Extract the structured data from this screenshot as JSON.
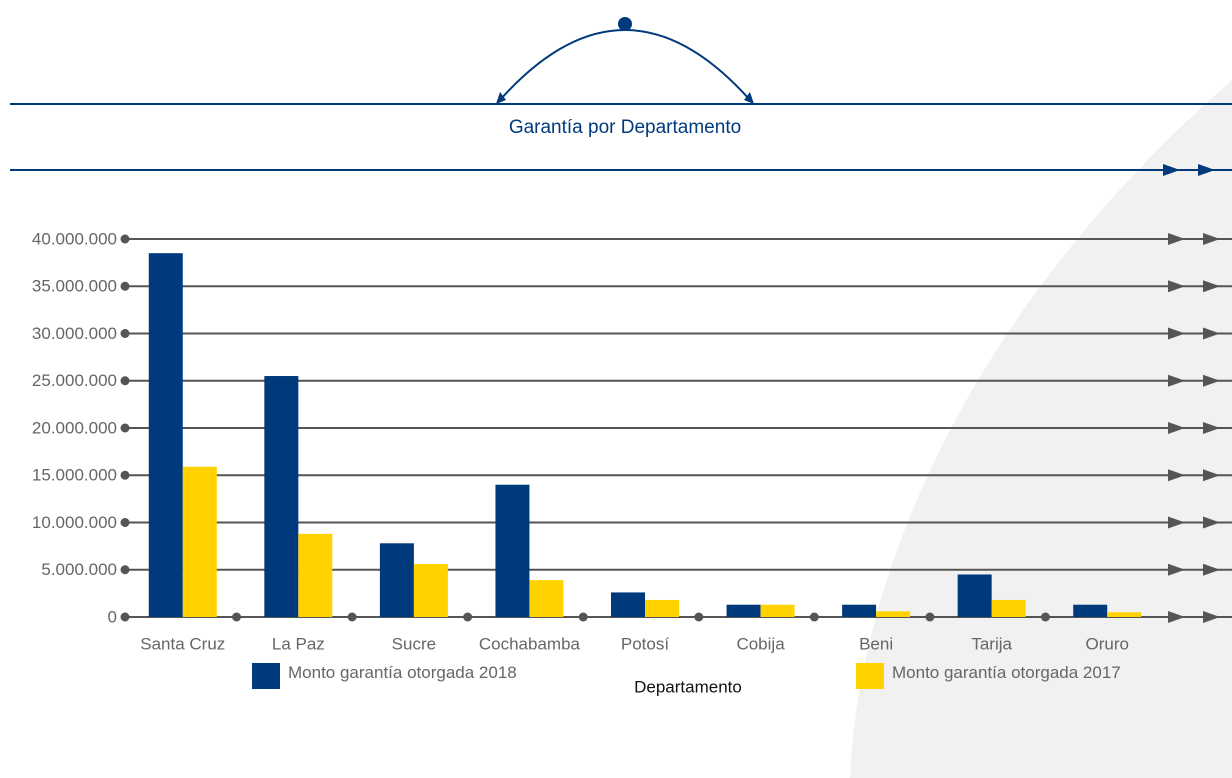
{
  "chart_data": {
    "type": "bar",
    "title": "Garantía por Departamento",
    "x_label": "Departamento",
    "categories": [
      "Santa Cruz",
      "La Paz",
      "Sucre",
      "Cochabamba",
      "Potosí",
      "Cobija",
      "Beni",
      "Tarija",
      "Oruro"
    ],
    "series": [
      {
        "name": "Monto garantía otorgada 2018",
        "color": "#003a7d",
        "values": [
          38500000,
          25500000,
          7800000,
          14000000,
          2600000,
          1300000,
          1300000,
          4500000,
          1300000
        ]
      },
      {
        "name": "Monto garantía otorgada 2017",
        "color": "#ffd200",
        "values": [
          15900000,
          8800000,
          5600000,
          3900000,
          1800000,
          1300000,
          600000,
          1800000,
          500000
        ]
      }
    ],
    "ylim": [
      0,
      40000000
    ],
    "yticks": [
      0,
      {
        "value": 5000000,
        "label": "5.000.000"
      },
      {
        "value": 10000000,
        "label": "10.000.000"
      },
      {
        "value": 15000000,
        "label": "15.000.000"
      },
      {
        "value": 20000000,
        "label": "20.000.000"
      },
      {
        "value": 25000000,
        "label": "25.000.000"
      },
      {
        "value": 30000000,
        "label": "30.000.000"
      },
      {
        "value": 35000000,
        "label": "35.000.000"
      },
      {
        "value": 40000000,
        "label": "40.000.000"
      }
    ],
    "grid": true
  }
}
